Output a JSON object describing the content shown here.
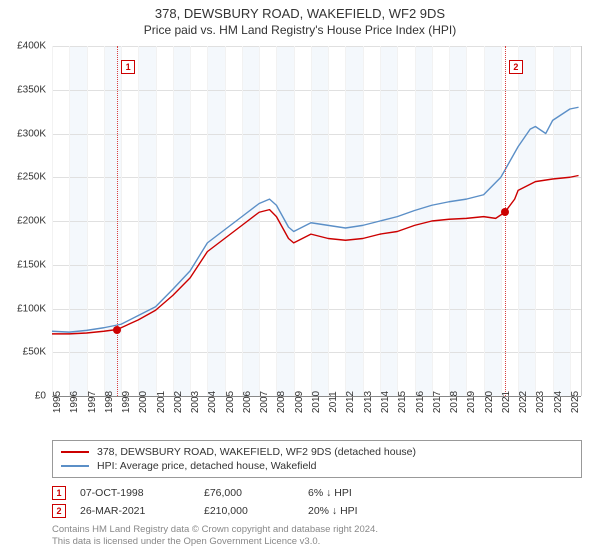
{
  "title": {
    "main": "378, DEWSBURY ROAD, WAKEFIELD, WF2 9DS",
    "sub": "Price paid vs. HM Land Registry's House Price Index (HPI)"
  },
  "chart": {
    "type": "line",
    "background_color": "#ffffff",
    "alt_band_color": "#f4f8fc",
    "grid_color": "#e0e0e0",
    "minor_grid_color": "#f2f2f2",
    "baseline_color": "#888888",
    "xlim": [
      1995,
      2025.7
    ],
    "ylim": [
      0,
      400000
    ],
    "ytick_step": 50000,
    "y_prefix": "£",
    "y_suffix": "K",
    "y_divisor": 1000,
    "x_ticks": [
      1995,
      1996,
      1997,
      1998,
      1999,
      2000,
      2001,
      2002,
      2003,
      2004,
      2005,
      2006,
      2007,
      2008,
      2009,
      2010,
      2011,
      2012,
      2013,
      2014,
      2015,
      2016,
      2017,
      2018,
      2019,
      2020,
      2021,
      2022,
      2023,
      2024,
      2025
    ],
    "alt_bands": [
      [
        1996,
        1997
      ],
      [
        1998,
        1999
      ],
      [
        2000,
        2001
      ],
      [
        2002,
        2003
      ],
      [
        2004,
        2005
      ],
      [
        2006,
        2007
      ],
      [
        2008,
        2009
      ],
      [
        2010,
        2011
      ],
      [
        2012,
        2013
      ],
      [
        2014,
        2015
      ],
      [
        2016,
        2017
      ],
      [
        2018,
        2019
      ],
      [
        2020,
        2021
      ],
      [
        2022,
        2023
      ],
      [
        2024,
        2025
      ]
    ],
    "axis_font_size": 10,
    "series": [
      {
        "name": "378, DEWSBURY ROAD, WAKEFIELD, WF2 9DS (detached house)",
        "color": "#cc0000",
        "width": 1.4,
        "data": [
          [
            1995,
            71000
          ],
          [
            1996,
            71000
          ],
          [
            1997,
            72000
          ],
          [
            1998,
            74000
          ],
          [
            1998.77,
            76000
          ],
          [
            1999,
            78000
          ],
          [
            2000,
            87000
          ],
          [
            2001,
            98000
          ],
          [
            2002,
            115000
          ],
          [
            2003,
            135000
          ],
          [
            2004,
            165000
          ],
          [
            2005,
            180000
          ],
          [
            2006,
            195000
          ],
          [
            2007,
            210000
          ],
          [
            2007.6,
            213000
          ],
          [
            2008,
            205000
          ],
          [
            2008.7,
            180000
          ],
          [
            2009,
            175000
          ],
          [
            2010,
            185000
          ],
          [
            2011,
            180000
          ],
          [
            2012,
            178000
          ],
          [
            2013,
            180000
          ],
          [
            2014,
            185000
          ],
          [
            2015,
            188000
          ],
          [
            2016,
            195000
          ],
          [
            2017,
            200000
          ],
          [
            2018,
            202000
          ],
          [
            2019,
            203000
          ],
          [
            2020,
            205000
          ],
          [
            2020.7,
            203000
          ],
          [
            2021.23,
            210000
          ],
          [
            2021.8,
            225000
          ],
          [
            2022,
            235000
          ],
          [
            2023,
            245000
          ],
          [
            2024,
            248000
          ],
          [
            2025,
            250000
          ],
          [
            2025.5,
            252000
          ]
        ]
      },
      {
        "name": "HPI: Average price, detached house, Wakefield",
        "color": "#5b8fc7",
        "width": 1.4,
        "data": [
          [
            1995,
            74000
          ],
          [
            1996,
            73000
          ],
          [
            1997,
            75000
          ],
          [
            1998,
            78000
          ],
          [
            1999,
            82000
          ],
          [
            2000,
            92000
          ],
          [
            2001,
            102000
          ],
          [
            2002,
            122000
          ],
          [
            2003,
            143000
          ],
          [
            2004,
            175000
          ],
          [
            2005,
            190000
          ],
          [
            2006,
            205000
          ],
          [
            2007,
            220000
          ],
          [
            2007.6,
            225000
          ],
          [
            2008,
            218000
          ],
          [
            2008.7,
            193000
          ],
          [
            2009,
            188000
          ],
          [
            2010,
            198000
          ],
          [
            2011,
            195000
          ],
          [
            2012,
            192000
          ],
          [
            2013,
            195000
          ],
          [
            2014,
            200000
          ],
          [
            2015,
            205000
          ],
          [
            2016,
            212000
          ],
          [
            2017,
            218000
          ],
          [
            2018,
            222000
          ],
          [
            2019,
            225000
          ],
          [
            2020,
            230000
          ],
          [
            2021,
            250000
          ],
          [
            2022,
            285000
          ],
          [
            2022.7,
            305000
          ],
          [
            2023,
            308000
          ],
          [
            2023.6,
            300000
          ],
          [
            2024,
            315000
          ],
          [
            2025,
            328000
          ],
          [
            2025.5,
            330000
          ]
        ]
      }
    ],
    "sale_lines": [
      {
        "x": 1998.77,
        "label": "1",
        "badge_y_offset": 14
      },
      {
        "x": 2021.23,
        "label": "2",
        "badge_y_offset": 14
      }
    ],
    "sale_markers": [
      {
        "x": 1998.77,
        "y": 76000
      },
      {
        "x": 2021.23,
        "y": 210000
      }
    ]
  },
  "legend": {
    "items": [
      {
        "color": "#cc0000",
        "label": "378, DEWSBURY ROAD, WAKEFIELD, WF2 9DS (detached house)"
      },
      {
        "color": "#5b8fc7",
        "label": "HPI: Average price, detached house, Wakefield"
      }
    ]
  },
  "sales": [
    {
      "idx": "1",
      "date": "07-OCT-1998",
      "price": "£76,000",
      "diff": "6%",
      "arrow": "↓",
      "vs": "HPI"
    },
    {
      "idx": "2",
      "date": "26-MAR-2021",
      "price": "£210,000",
      "diff": "20%",
      "arrow": "↓",
      "vs": "HPI"
    }
  ],
  "attribution": {
    "line1": "Contains HM Land Registry data © Crown copyright and database right 2024.",
    "line2": "This data is licensed under the Open Government Licence v3.0."
  }
}
